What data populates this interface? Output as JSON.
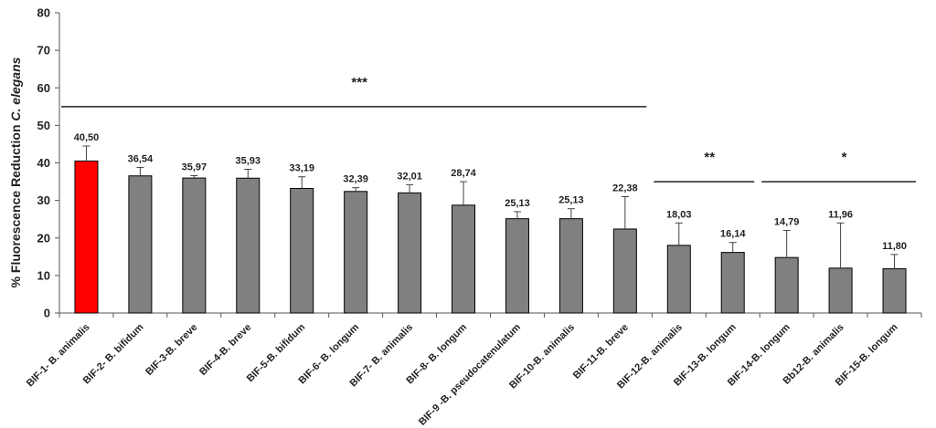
{
  "chart_data": {
    "type": "bar",
    "title": "",
    "xlabel": "",
    "ylabel_prefix": "% Fluorescence Reduction ",
    "ylabel_italic": "C. elegans",
    "ylim": [
      0,
      80
    ],
    "yticks": [
      0,
      10,
      20,
      30,
      40,
      50,
      60,
      70,
      80
    ],
    "grid": false,
    "legend": "none",
    "categories": [
      "BIF-1- B. animalis",
      "BIF-2- B. bifidum",
      "BIF-3-B. breve",
      "BIF-4-B. breve",
      "BIF-5-B. bifidum",
      "BIF-6- B. longum",
      "BIF-7- B. animalis",
      "BIF-8- B. longum",
      "BIF-9 -B. pseudocatenulatum",
      "BIF-10-B. animalis",
      "BIF-11-B. breve",
      "BIF-12-B. animalis",
      "BIF-13-B. longum",
      "BIF-14-B. longum",
      "Bb12-B. animalis",
      "BIF-15-B. longum"
    ],
    "values": [
      40.5,
      36.54,
      35.97,
      35.93,
      33.19,
      32.39,
      32.01,
      28.74,
      25.13,
      25.13,
      22.38,
      18.03,
      16.14,
      14.79,
      11.96,
      11.8
    ],
    "value_labels": [
      "40,50",
      "36,54",
      "35,97",
      "35,93",
      "33,19",
      "32,39",
      "32,01",
      "28,74",
      "25,13",
      "25,13",
      "22,38",
      "18,03",
      "16,14",
      "14,79",
      "11,96",
      "11,80"
    ],
    "error_upper": [
      44.5,
      38.8,
      36.6,
      38.3,
      36.3,
      33.4,
      34.2,
      35.0,
      27.0,
      27.8,
      31.0,
      24.0,
      18.8,
      22.0,
      24.0,
      15.6
    ],
    "colors": {
      "highlight": "#ff0000",
      "bar": "#808080",
      "bar_edge": "#000000"
    },
    "bar_colors": [
      "highlight",
      "bar",
      "bar",
      "bar",
      "bar",
      "bar",
      "bar",
      "bar",
      "bar",
      "bar",
      "bar",
      "bar",
      "bar",
      "bar",
      "bar",
      "bar"
    ],
    "significance": [
      {
        "label": "***",
        "from": 0,
        "to": 10,
        "y": 55
      },
      {
        "label": "**",
        "from": 11,
        "to": 12,
        "y": 35
      },
      {
        "label": "*",
        "from": 13,
        "to": 15,
        "y": 35
      }
    ]
  }
}
